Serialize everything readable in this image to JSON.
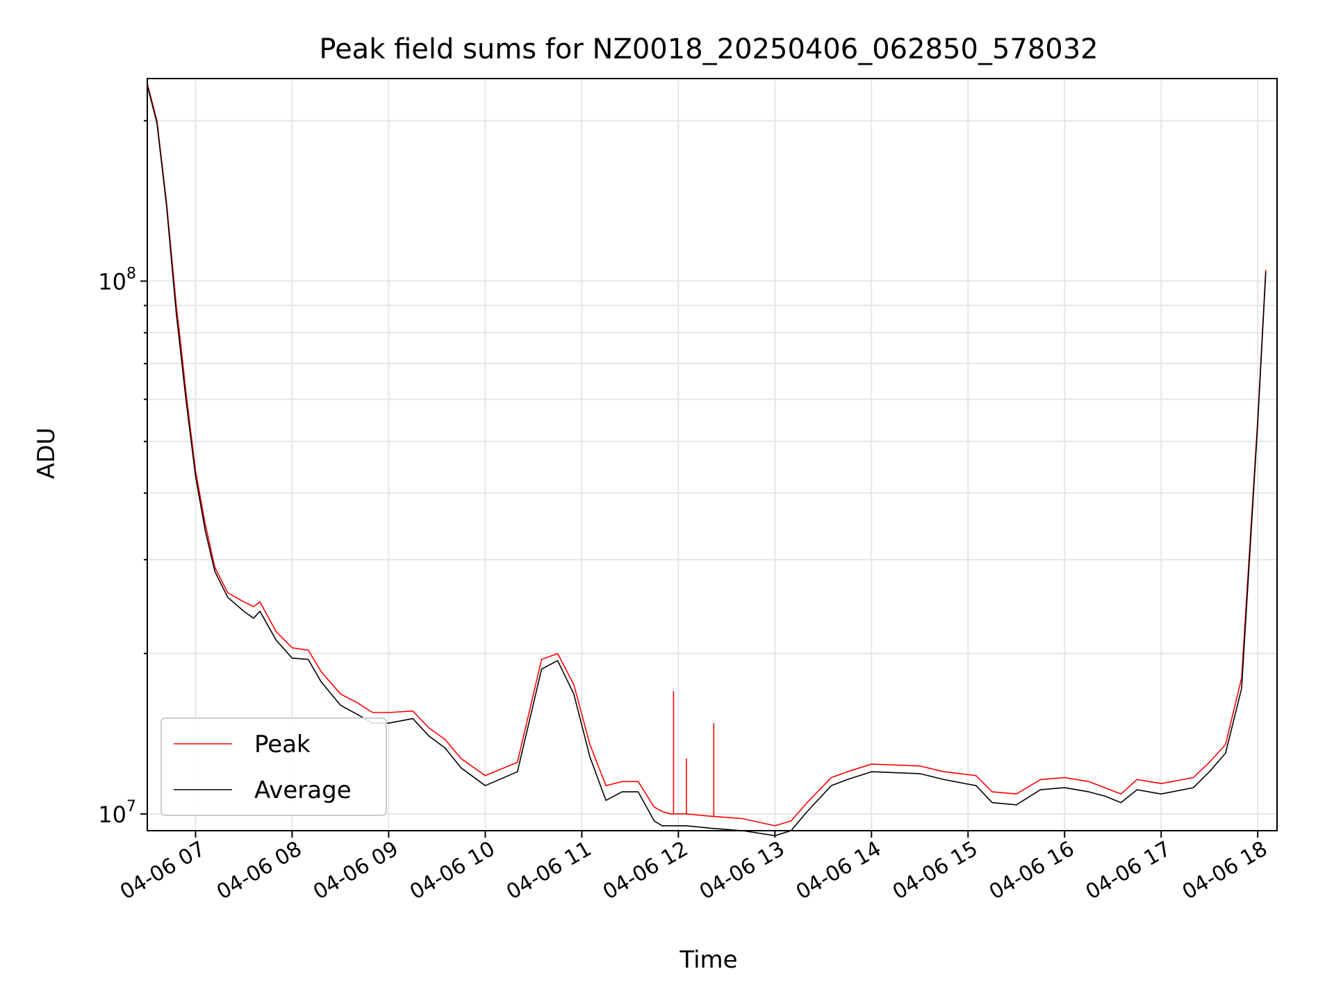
{
  "chart_data": {
    "type": "line",
    "title": "Peak field sums for NZ0018_20250406_062850_578032",
    "xlabel": "Time",
    "ylabel": "ADU",
    "yscale": "log",
    "grid": true,
    "legend_position": "lower-left",
    "x_range": [
      "2025-04-06 06:30",
      "2025-04-06 18:12"
    ],
    "ylim": [
      9300000,
      240000000
    ],
    "x_ticks": [
      "04-06 07",
      "04-06 08",
      "04-06 09",
      "04-06 10",
      "04-06 11",
      "04-06 12",
      "04-06 13",
      "04-06 14",
      "04-06 15",
      "04-06 16",
      "04-06 17",
      "04-06 18"
    ],
    "y_ticks": [
      {
        "base": "10",
        "exp": "7",
        "value": 10000000
      },
      {
        "base": "10",
        "exp": "8",
        "value": 100000000
      }
    ],
    "series": [
      {
        "name": "Peak",
        "color": "#ff0000",
        "x": [
          "2025-04-06 06:30",
          "2025-04-06 06:36",
          "2025-04-06 06:42",
          "2025-04-06 06:48",
          "2025-04-06 06:50",
          "2025-04-06 06:54",
          "2025-04-06 07:00",
          "2025-04-06 07:06",
          "2025-04-06 07:12",
          "2025-04-06 07:20",
          "2025-04-06 07:30",
          "2025-04-06 07:36",
          "2025-04-06 07:40",
          "2025-04-06 07:50",
          "2025-04-06 08:00",
          "2025-04-06 08:10",
          "2025-04-06 08:18",
          "2025-04-06 08:30",
          "2025-04-06 08:40",
          "2025-04-06 08:50",
          "2025-04-06 09:00",
          "2025-04-06 09:15",
          "2025-04-06 09:25",
          "2025-04-06 09:35",
          "2025-04-06 09:45",
          "2025-04-06 10:00",
          "2025-04-06 10:20",
          "2025-04-06 10:35",
          "2025-04-06 10:45",
          "2025-04-06 10:55",
          "2025-04-06 11:05",
          "2025-04-06 11:15",
          "2025-04-06 11:25",
          "2025-04-06 11:35",
          "2025-04-06 11:45",
          "2025-04-06 11:50",
          "2025-04-06 11:55",
          "2025-04-06 12:05",
          "2025-04-06 12:20",
          "2025-04-06 12:40",
          "2025-04-06 13:00",
          "2025-04-06 13:10",
          "2025-04-06 13:20",
          "2025-04-06 13:35",
          "2025-04-06 13:45",
          "2025-04-06 14:00",
          "2025-04-06 14:30",
          "2025-04-06 14:45",
          "2025-04-06 15:05",
          "2025-04-06 15:15",
          "2025-04-06 15:30",
          "2025-04-06 15:45",
          "2025-04-06 16:00",
          "2025-04-06 16:15",
          "2025-04-06 16:25",
          "2025-04-06 16:35",
          "2025-04-06 16:45",
          "2025-04-06 17:00",
          "2025-04-06 17:20",
          "2025-04-06 17:30",
          "2025-04-06 17:40",
          "2025-04-06 17:50",
          "2025-04-06 18:00",
          "2025-04-06 18:05"
        ],
        "y": [
          235000000,
          200000000,
          140000000,
          90000000,
          80000000,
          62000000,
          44000000,
          35000000,
          29000000,
          26000000,
          25000000,
          24500000,
          25000000,
          22000000,
          20500000,
          20300000,
          18500000,
          16800000,
          16200000,
          15500000,
          15500000,
          15600000,
          14500000,
          13800000,
          12700000,
          11800000,
          12500000,
          19500000,
          20000000,
          17500000,
          13500000,
          11300000,
          11500000,
          11500000,
          10300000,
          10100000,
          10000000,
          10000000,
          9900000,
          9800000,
          9500000,
          9700000,
          10500000,
          11700000,
          12000000,
          12400000,
          12300000,
          12000000,
          11800000,
          11000000,
          10900000,
          11600000,
          11700000,
          11500000,
          11200000,
          10900000,
          11600000,
          11400000,
          11700000,
          12500000,
          13500000,
          18000000,
          55000000,
          105000000
        ],
        "spikes": [
          {
            "x": "2025-04-06 11:57",
            "y": 17000000
          },
          {
            "x": "2025-04-06 12:05",
            "y": 12700000
          },
          {
            "x": "2025-04-06 12:22",
            "y": 14800000
          }
        ]
      },
      {
        "name": "Average",
        "color": "#000000",
        "x": [
          "2025-04-06 06:30",
          "2025-04-06 06:36",
          "2025-04-06 06:42",
          "2025-04-06 06:48",
          "2025-04-06 06:50",
          "2025-04-06 06:54",
          "2025-04-06 07:00",
          "2025-04-06 07:06",
          "2025-04-06 07:12",
          "2025-04-06 07:20",
          "2025-04-06 07:30",
          "2025-04-06 07:36",
          "2025-04-06 07:40",
          "2025-04-06 07:50",
          "2025-04-06 08:00",
          "2025-04-06 08:10",
          "2025-04-06 08:18",
          "2025-04-06 08:30",
          "2025-04-06 08:40",
          "2025-04-06 08:50",
          "2025-04-06 09:00",
          "2025-04-06 09:15",
          "2025-04-06 09:25",
          "2025-04-06 09:35",
          "2025-04-06 09:45",
          "2025-04-06 10:00",
          "2025-04-06 10:20",
          "2025-04-06 10:35",
          "2025-04-06 10:45",
          "2025-04-06 10:55",
          "2025-04-06 11:05",
          "2025-04-06 11:15",
          "2025-04-06 11:25",
          "2025-04-06 11:35",
          "2025-04-06 11:45",
          "2025-04-06 11:50",
          "2025-04-06 11:55",
          "2025-04-06 12:05",
          "2025-04-06 12:20",
          "2025-04-06 12:40",
          "2025-04-06 13:00",
          "2025-04-06 13:10",
          "2025-04-06 13:20",
          "2025-04-06 13:35",
          "2025-04-06 13:45",
          "2025-04-06 14:00",
          "2025-04-06 14:30",
          "2025-04-06 14:45",
          "2025-04-06 15:05",
          "2025-04-06 15:15",
          "2025-04-06 15:30",
          "2025-04-06 15:45",
          "2025-04-06 16:00",
          "2025-04-06 16:15",
          "2025-04-06 16:25",
          "2025-04-06 16:35",
          "2025-04-06 16:45",
          "2025-04-06 17:00",
          "2025-04-06 17:20",
          "2025-04-06 17:30",
          "2025-04-06 17:40",
          "2025-04-06 17:50",
          "2025-04-06 18:00",
          "2025-04-06 18:05"
        ],
        "y": [
          233000000,
          198000000,
          138000000,
          87000000,
          77000000,
          60000000,
          43000000,
          34000000,
          28500000,
          25500000,
          24000000,
          23300000,
          24000000,
          21200000,
          19600000,
          19500000,
          17700000,
          16000000,
          15400000,
          14800000,
          14800000,
          15100000,
          14000000,
          13300000,
          12200000,
          11300000,
          12000000,
          18700000,
          19400000,
          16800000,
          12800000,
          10600000,
          11000000,
          11000000,
          9700000,
          9500000,
          9500000,
          9500000,
          9400000,
          9300000,
          9100000,
          9300000,
          10100000,
          11300000,
          11600000,
          12000000,
          11900000,
          11600000,
          11300000,
          10500000,
          10400000,
          11100000,
          11200000,
          11000000,
          10800000,
          10500000,
          11100000,
          10900000,
          11200000,
          12000000,
          13000000,
          17200000,
          54000000,
          104000000
        ]
      }
    ]
  }
}
